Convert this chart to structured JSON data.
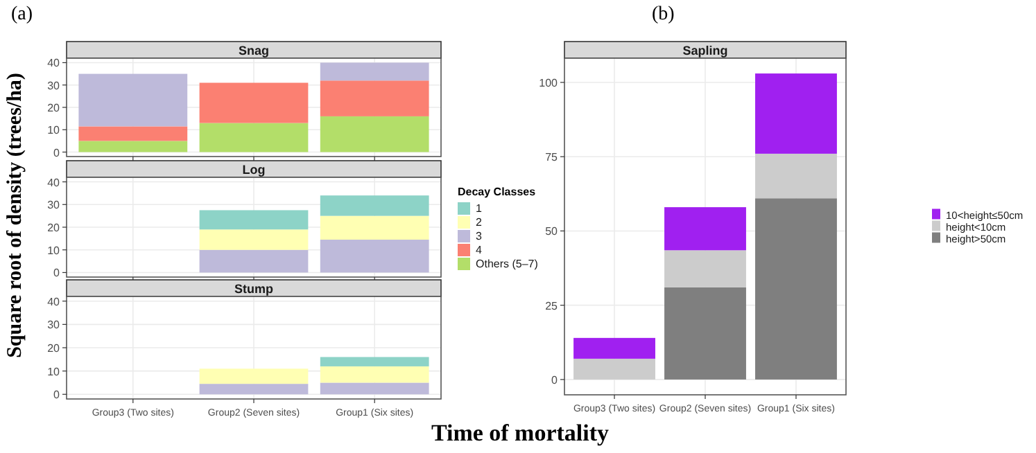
{
  "chart_data": [
    {
      "type": "bar",
      "title": "Snag",
      "annotations": [
        "(a)"
      ],
      "stacked": true,
      "categories": [
        null,
        null,
        null
      ],
      "ylim": [
        -2,
        42
      ],
      "yticks": [
        0,
        10,
        20,
        30,
        40
      ],
      "grid": true,
      "tick_labels": "y",
      "series": [
        {
          "color": "#b3de69",
          "values": [
            5,
            13,
            16
          ]
        },
        {
          "color": "#fb8072",
          "values": [
            6.5,
            18,
            16
          ]
        },
        {
          "color": "#bebada",
          "values": [
            23.5,
            null,
            8
          ]
        }
      ]
    },
    {
      "type": "bar",
      "title": "Log",
      "ylabel": "Square root of density (trees/ha)",
      "legend_title": "Decay Classes",
      "legend": "right",
      "stacked": true,
      "categories": [
        null,
        null,
        null
      ],
      "ylim": [
        -2,
        42
      ],
      "yticks": [
        0,
        10,
        20,
        30,
        40
      ],
      "grid": true,
      "tick_labels": "y",
      "series": [
        {
          "name": "Others (5–7)",
          "color": "#b3de69",
          "values": [
            null,
            null,
            null
          ]
        },
        {
          "name": "4",
          "color": "#fb8072",
          "values": [
            null,
            null,
            null
          ]
        },
        {
          "name": "3",
          "color": "#bebada",
          "values": [
            null,
            10,
            14.5
          ]
        },
        {
          "name": "2",
          "color": "#ffffb3",
          "values": [
            null,
            9,
            10.5
          ]
        },
        {
          "name": "1",
          "color": "#8dd3c7",
          "values": [
            null,
            8.5,
            9
          ]
        }
      ]
    },
    {
      "type": "bar",
      "title": "Stump",
      "xlabel": "Time of mortality",
      "stacked": true,
      "categories": [
        "Group3 (Two sites)",
        "Group2 (Seven sites)",
        "Group1 (Six sites)"
      ],
      "ylim": [
        -2,
        42
      ],
      "yticks": [
        0,
        10,
        20,
        30,
        40
      ],
      "grid": true,
      "series": [
        {
          "color": "#bebada",
          "values": [
            null,
            4.5,
            5
          ]
        },
        {
          "color": "#ffffb3",
          "values": [
            null,
            6.5,
            7
          ]
        },
        {
          "color": "#8dd3c7",
          "values": [
            null,
            null,
            4
          ]
        }
      ]
    },
    {
      "type": "bar",
      "title": "Sapling",
      "annotations": [
        "(b)"
      ],
      "legend": "right",
      "stacked": true,
      "categories": [
        "Group3 (Two sites)",
        "Group2 (Seven sites)",
        "Group1 (Six sites)"
      ],
      "ylim": [
        -5.15,
        108.15
      ],
      "yticks": [
        0,
        25,
        50,
        75,
        100
      ],
      "grid": true,
      "series": [
        {
          "name": "height>50cm",
          "color": "#7f7f7f",
          "values": [
            null,
            31,
            61
          ]
        },
        {
          "name": "height<10cm",
          "color": "#cccccc",
          "values": [
            7,
            12.5,
            15
          ]
        },
        {
          "name": "10<height≤50cm",
          "color": "#a020f0",
          "values": [
            7,
            14.5,
            27
          ]
        }
      ]
    }
  ]
}
